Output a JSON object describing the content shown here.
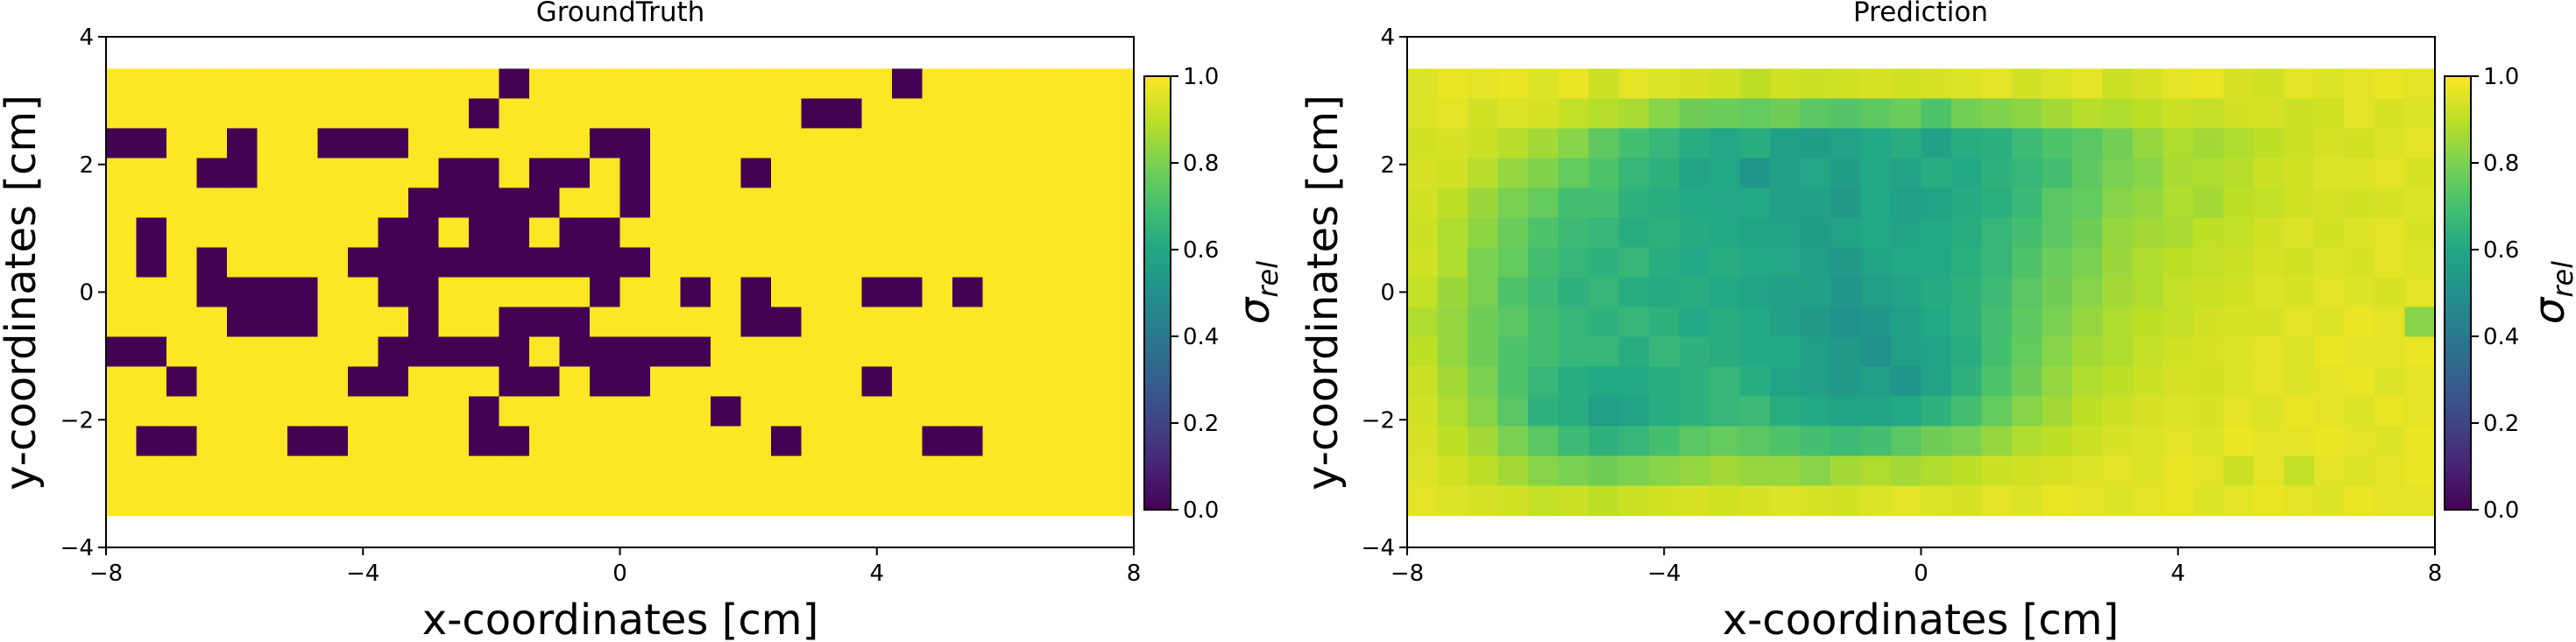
{
  "chart_data": [
    {
      "type": "heatmap",
      "title": "GroundTruth",
      "xlabel": "x-coordinates [cm]",
      "ylabel": "y-coordinates [cm]",
      "xlim": [
        -8,
        8
      ],
      "ylim": [
        -4,
        4
      ],
      "extent": [
        -8,
        8,
        -3.5,
        3.5
      ],
      "xticks": [
        "−8",
        "−4",
        "0",
        "4",
        "8"
      ],
      "yticks": [
        "4",
        "2",
        "0",
        "−2",
        "−4"
      ],
      "colorbar": {
        "label": "σ",
        "label_sub": "rel",
        "ticks": [
          "1.0",
          "0.8",
          "0.6",
          "0.4",
          "0.2",
          "0.0"
        ],
        "range": [
          0,
          1
        ],
        "colormap": "viridis"
      },
      "cols": 34,
      "rows": 15,
      "values": [
        "1111111111111111111111111111111111",
        "1111111111111111111111111111111111",
        "1111111111111111111111111111111111",
        "1111111111111111111111111111111111",
        "1111111111111111111111111111111111",
        "1111111111111111111111111111111111",
        "1111111111111111111111111111111111",
        "1111111111111111111111111111111111",
        "1111111111111111111111111111111111",
        "1111111111111111111111111111111111",
        "1111111111111111111111111111111111",
        "1111111111111111111111111111111111",
        "1111111111111111111111111111111111",
        "1111111111111111111111111111111111",
        "1111111111111111111111111111111111"
      ],
      "zero_cells": [
        [
          13,
          0
        ],
        [
          26,
          0
        ],
        [
          12,
          1
        ],
        [
          23,
          1
        ],
        [
          24,
          1
        ],
        [
          0,
          2
        ],
        [
          1,
          2
        ],
        [
          4,
          2
        ],
        [
          7,
          2
        ],
        [
          8,
          2
        ],
        [
          9,
          2
        ],
        [
          16,
          2
        ],
        [
          17,
          2
        ],
        [
          3,
          3
        ],
        [
          4,
          3
        ],
        [
          11,
          3
        ],
        [
          12,
          3
        ],
        [
          14,
          3
        ],
        [
          15,
          3
        ],
        [
          17,
          3
        ],
        [
          21,
          3
        ],
        [
          10,
          4
        ],
        [
          11,
          4
        ],
        [
          12,
          4
        ],
        [
          13,
          4
        ],
        [
          14,
          4
        ],
        [
          17,
          4
        ],
        [
          1,
          5
        ],
        [
          9,
          5
        ],
        [
          10,
          5
        ],
        [
          12,
          5
        ],
        [
          13,
          5
        ],
        [
          15,
          5
        ],
        [
          16,
          5
        ],
        [
          1,
          6
        ],
        [
          3,
          6
        ],
        [
          8,
          6
        ],
        [
          9,
          6
        ],
        [
          10,
          6
        ],
        [
          11,
          6
        ],
        [
          12,
          6
        ],
        [
          13,
          6
        ],
        [
          14,
          6
        ],
        [
          15,
          6
        ],
        [
          16,
          6
        ],
        [
          17,
          6
        ],
        [
          3,
          7
        ],
        [
          4,
          7
        ],
        [
          5,
          7
        ],
        [
          6,
          7
        ],
        [
          9,
          7
        ],
        [
          10,
          7
        ],
        [
          16,
          7
        ],
        [
          19,
          7
        ],
        [
          21,
          7
        ],
        [
          25,
          7
        ],
        [
          26,
          7
        ],
        [
          28,
          7
        ],
        [
          4,
          8
        ],
        [
          5,
          8
        ],
        [
          6,
          8
        ],
        [
          10,
          8
        ],
        [
          13,
          8
        ],
        [
          14,
          8
        ],
        [
          15,
          8
        ],
        [
          21,
          8
        ],
        [
          22,
          8
        ],
        [
          0,
          9
        ],
        [
          1,
          9
        ],
        [
          9,
          9
        ],
        [
          10,
          9
        ],
        [
          11,
          9
        ],
        [
          12,
          9
        ],
        [
          13,
          9
        ],
        [
          15,
          9
        ],
        [
          16,
          9
        ],
        [
          17,
          9
        ],
        [
          18,
          9
        ],
        [
          19,
          9
        ],
        [
          2,
          10
        ],
        [
          8,
          10
        ],
        [
          9,
          10
        ],
        [
          13,
          10
        ],
        [
          14,
          10
        ],
        [
          16,
          10
        ],
        [
          17,
          10
        ],
        [
          25,
          10
        ],
        [
          12,
          11
        ],
        [
          12,
          12
        ],
        [
          13,
          12
        ],
        [
          20,
          11
        ],
        [
          1,
          12
        ],
        [
          2,
          12
        ],
        [
          6,
          12
        ],
        [
          7,
          12
        ],
        [
          22,
          12
        ],
        [
          27,
          12
        ],
        [
          28,
          12
        ]
      ]
    },
    {
      "type": "heatmap",
      "title": "Prediction",
      "xlabel": "x-coordinates [cm]",
      "ylabel": "y-coordinates [cm]",
      "xlim": [
        -8,
        8
      ],
      "ylim": [
        -4,
        4
      ],
      "extent": [
        -8,
        8,
        -3.5,
        3.5
      ],
      "xticks": [
        "−8",
        "−4",
        "0",
        "4",
        "8"
      ],
      "yticks": [
        "4",
        "2",
        "0",
        "−2",
        "−4"
      ],
      "colorbar": {
        "label": "σ",
        "label_sub": "rel",
        "ticks": [
          "1.0",
          "0.8",
          "0.6",
          "0.4",
          "0.2",
          "0.0"
        ],
        "range": [
          0,
          1
        ],
        "colormap": "viridis"
      },
      "cols": 34,
      "rows": 15,
      "values": [
        [
          0.95,
          0.97,
          0.96,
          0.97,
          0.95,
          0.97,
          0.92,
          0.96,
          0.95,
          0.94,
          0.93,
          0.9,
          0.93,
          0.92,
          0.93,
          0.94,
          0.93,
          0.94,
          0.95,
          0.96,
          0.93,
          0.95,
          0.96,
          0.92,
          0.94,
          0.96,
          0.97,
          0.94,
          0.93,
          0.96,
          0.95,
          0.96,
          0.97,
          0.96
        ],
        [
          0.95,
          0.96,
          0.93,
          0.95,
          0.94,
          0.91,
          0.89,
          0.87,
          0.82,
          0.78,
          0.77,
          0.76,
          0.78,
          0.74,
          0.73,
          0.75,
          0.77,
          0.72,
          0.79,
          0.81,
          0.83,
          0.86,
          0.89,
          0.88,
          0.9,
          0.92,
          0.91,
          0.93,
          0.94,
          0.92,
          0.93,
          0.96,
          0.94,
          0.95
        ],
        [
          0.93,
          0.94,
          0.92,
          0.89,
          0.86,
          0.82,
          0.75,
          0.7,
          0.66,
          0.62,
          0.59,
          0.62,
          0.56,
          0.55,
          0.58,
          0.6,
          0.62,
          0.57,
          0.62,
          0.63,
          0.68,
          0.72,
          0.74,
          0.79,
          0.84,
          0.88,
          0.86,
          0.88,
          0.9,
          0.92,
          0.94,
          0.93,
          0.95,
          0.96
        ],
        [
          0.94,
          0.93,
          0.89,
          0.84,
          0.81,
          0.76,
          0.72,
          0.66,
          0.64,
          0.58,
          0.6,
          0.52,
          0.56,
          0.59,
          0.55,
          0.6,
          0.58,
          0.62,
          0.6,
          0.64,
          0.66,
          0.7,
          0.75,
          0.8,
          0.82,
          0.87,
          0.88,
          0.89,
          0.92,
          0.93,
          0.95,
          0.95,
          0.96,
          0.94
        ],
        [
          0.93,
          0.9,
          0.85,
          0.8,
          0.76,
          0.7,
          0.7,
          0.64,
          0.62,
          0.6,
          0.59,
          0.6,
          0.56,
          0.57,
          0.54,
          0.6,
          0.56,
          0.58,
          0.61,
          0.63,
          0.67,
          0.74,
          0.76,
          0.82,
          0.84,
          0.88,
          0.86,
          0.9,
          0.91,
          0.93,
          0.94,
          0.93,
          0.94,
          0.95
        ],
        [
          0.92,
          0.88,
          0.83,
          0.77,
          0.72,
          0.68,
          0.66,
          0.62,
          0.64,
          0.61,
          0.6,
          0.58,
          0.58,
          0.55,
          0.58,
          0.6,
          0.58,
          0.6,
          0.62,
          0.66,
          0.7,
          0.74,
          0.78,
          0.84,
          0.86,
          0.87,
          0.9,
          0.91,
          0.93,
          0.95,
          0.93,
          0.95,
          0.96,
          0.94
        ],
        [
          0.93,
          0.88,
          0.8,
          0.76,
          0.7,
          0.66,
          0.64,
          0.66,
          0.62,
          0.6,
          0.62,
          0.6,
          0.59,
          0.56,
          0.54,
          0.58,
          0.6,
          0.6,
          0.63,
          0.66,
          0.72,
          0.77,
          0.8,
          0.85,
          0.88,
          0.9,
          0.91,
          0.92,
          0.94,
          0.93,
          0.95,
          0.94,
          0.96,
          0.95
        ],
        [
          0.91,
          0.85,
          0.8,
          0.72,
          0.68,
          0.64,
          0.66,
          0.62,
          0.61,
          0.62,
          0.6,
          0.58,
          0.56,
          0.57,
          0.52,
          0.56,
          0.58,
          0.61,
          0.64,
          0.68,
          0.74,
          0.78,
          0.82,
          0.86,
          0.88,
          0.91,
          0.92,
          0.93,
          0.95,
          0.94,
          0.96,
          0.95,
          0.94,
          0.96
        ],
        [
          0.88,
          0.84,
          0.78,
          0.74,
          0.7,
          0.66,
          0.64,
          0.66,
          0.64,
          0.6,
          0.62,
          0.6,
          0.57,
          0.54,
          0.5,
          0.52,
          0.56,
          0.6,
          0.64,
          0.7,
          0.75,
          0.8,
          0.84,
          0.88,
          0.9,
          0.91,
          0.93,
          0.94,
          0.94,
          0.96,
          0.95,
          0.97,
          0.96,
          0.82
        ],
        [
          0.9,
          0.84,
          0.78,
          0.72,
          0.7,
          0.66,
          0.66,
          0.62,
          0.66,
          0.64,
          0.62,
          0.6,
          0.6,
          0.56,
          0.54,
          0.5,
          0.56,
          0.58,
          0.62,
          0.7,
          0.76,
          0.82,
          0.86,
          0.88,
          0.91,
          0.93,
          0.94,
          0.95,
          0.96,
          0.95,
          0.97,
          0.96,
          0.96,
          0.97
        ],
        [
          0.92,
          0.86,
          0.8,
          0.72,
          0.66,
          0.62,
          0.6,
          0.6,
          0.62,
          0.64,
          0.66,
          0.62,
          0.58,
          0.56,
          0.54,
          0.56,
          0.52,
          0.58,
          0.64,
          0.72,
          0.78,
          0.84,
          0.88,
          0.9,
          0.92,
          0.94,
          0.93,
          0.95,
          0.96,
          0.95,
          0.96,
          0.97,
          0.95,
          0.96
        ],
        [
          0.93,
          0.88,
          0.82,
          0.74,
          0.64,
          0.62,
          0.56,
          0.58,
          0.62,
          0.64,
          0.66,
          0.68,
          0.62,
          0.6,
          0.58,
          0.58,
          0.6,
          0.64,
          0.7,
          0.76,
          0.82,
          0.86,
          0.9,
          0.92,
          0.94,
          0.95,
          0.94,
          0.96,
          0.95,
          0.97,
          0.96,
          0.95,
          0.97,
          0.96
        ],
        [
          0.94,
          0.9,
          0.86,
          0.8,
          0.74,
          0.68,
          0.64,
          0.66,
          0.7,
          0.74,
          0.76,
          0.74,
          0.72,
          0.7,
          0.68,
          0.7,
          0.74,
          0.78,
          0.8,
          0.84,
          0.88,
          0.9,
          0.92,
          0.94,
          0.95,
          0.96,
          0.95,
          0.97,
          0.96,
          0.96,
          0.97,
          0.96,
          0.95,
          0.97
        ],
        [
          0.95,
          0.93,
          0.9,
          0.86,
          0.82,
          0.8,
          0.78,
          0.8,
          0.82,
          0.84,
          0.86,
          0.84,
          0.84,
          0.82,
          0.86,
          0.88,
          0.86,
          0.88,
          0.9,
          0.92,
          0.93,
          0.94,
          0.95,
          0.96,
          0.95,
          0.97,
          0.96,
          0.92,
          0.96,
          0.91,
          0.96,
          0.95,
          0.96,
          0.97
        ],
        [
          0.96,
          0.95,
          0.94,
          0.93,
          0.91,
          0.92,
          0.9,
          0.92,
          0.93,
          0.94,
          0.93,
          0.94,
          0.95,
          0.94,
          0.93,
          0.95,
          0.96,
          0.95,
          0.94,
          0.96,
          0.95,
          0.97,
          0.96,
          0.95,
          0.96,
          0.97,
          0.95,
          0.96,
          0.97,
          0.96,
          0.95,
          0.97,
          0.96,
          0.96
        ]
      ]
    }
  ]
}
